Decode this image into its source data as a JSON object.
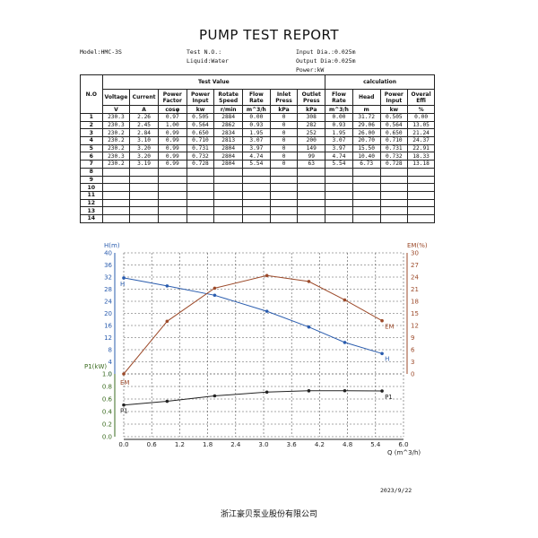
{
  "report": {
    "title": "PUMP TEST REPORT",
    "model": "Model:HMC-3S",
    "test_no": "Test N.O.:",
    "liquid": "Liquid:Water",
    "input_dia": "Input Dia.:0.025m",
    "output_dia": "Output Dia:0.025m",
    "power": "Power:kW"
  },
  "table": {
    "no_header": "N.O",
    "group_test": "Test Value",
    "group_calc": "calculation",
    "columns": [
      "Voltage",
      "Current",
      "Power Factor",
      "Power Input",
      "Rotate Speed",
      "Flow Rate",
      "Inlet Press",
      "Outlet Press",
      "Flow Rate",
      "Head",
      "Power Input",
      "Overal Effi"
    ],
    "units": [
      "V",
      "A",
      "cosφ",
      "kw",
      "r/min",
      "m^3/h",
      "kPa",
      "kPa",
      "m^3/h",
      "m",
      "kw",
      "%"
    ],
    "row_numbers": [
      "1",
      "2",
      "3",
      "4",
      "5",
      "6",
      "7",
      "8",
      "9",
      "10",
      "11",
      "12",
      "13",
      "14"
    ],
    "rows": [
      [
        "230.3",
        "2.26",
        "0.97",
        "0.505",
        "2884",
        "0.00",
        "0",
        "308",
        "0.00",
        "31.72",
        "0.505",
        "0.00"
      ],
      [
        "230.3",
        "2.45",
        "1.00",
        "0.564",
        "2862",
        "0.93",
        "0",
        "282",
        "0.93",
        "29.06",
        "0.564",
        "13.05"
      ],
      [
        "230.2",
        "2.84",
        "0.99",
        "0.650",
        "2834",
        "1.95",
        "0",
        "252",
        "1.95",
        "26.00",
        "0.650",
        "21.24"
      ],
      [
        "230.2",
        "3.10",
        "0.99",
        "0.710",
        "2813",
        "3.07",
        "0",
        "200",
        "3.07",
        "20.70",
        "0.710",
        "24.37"
      ],
      [
        "230.2",
        "3.20",
        "0.99",
        "0.731",
        "2804",
        "3.97",
        "0",
        "149",
        "3.97",
        "15.50",
        "0.731",
        "22.91"
      ],
      [
        "230.3",
        "3.20",
        "0.99",
        "0.732",
        "2804",
        "4.74",
        "0",
        "99",
        "4.74",
        "10.40",
        "0.732",
        "18.33"
      ],
      [
        "230.2",
        "3.19",
        "0.99",
        "0.728",
        "2804",
        "5.54",
        "0",
        "63",
        "5.54",
        "6.73",
        "0.728",
        "13.18"
      ]
    ]
  },
  "chart_data": {
    "type": "line",
    "xlabel": "Q (m^3/h)",
    "x_ticks": [
      "0.0",
      "0.6",
      "1.2",
      "1.8",
      "2.4",
      "3.0",
      "3.6",
      "4.2",
      "4.8",
      "5.4",
      "6.0"
    ],
    "xlim": [
      0,
      6.0
    ],
    "axes": {
      "H": {
        "label": "H(m)",
        "ticks": [
          "0",
          "4",
          "8",
          "12",
          "16",
          "20",
          "24",
          "28",
          "32",
          "36",
          "40"
        ],
        "ylim": [
          0,
          40
        ]
      },
      "EM": {
        "label": "EM(%)",
        "ticks": [
          "0",
          "3",
          "6",
          "9",
          "12",
          "15",
          "18",
          "21",
          "24",
          "27",
          "30"
        ],
        "ylim": [
          0,
          30
        ]
      },
      "P1": {
        "label": "P1(kW)",
        "ticks": [
          "0.0",
          "0.2",
          "0.4",
          "0.6",
          "0.8",
          "1.0"
        ],
        "ylim": [
          0,
          1.0
        ]
      }
    },
    "series": [
      {
        "name": "H",
        "axis": "H",
        "color": "#2a5cae",
        "end_label": "H",
        "x": [
          0.0,
          0.93,
          1.95,
          3.07,
          3.97,
          4.74,
          5.54
        ],
        "y": [
          31.72,
          29.06,
          26.0,
          20.7,
          15.5,
          10.4,
          6.73
        ]
      },
      {
        "name": "EM",
        "axis": "EM",
        "color": "#9c4a2a",
        "end_label": "EM",
        "x": [
          0.0,
          0.93,
          1.95,
          3.07,
          3.97,
          4.74,
          5.54
        ],
        "y": [
          0.0,
          13.05,
          21.24,
          24.37,
          22.91,
          18.33,
          13.18
        ]
      },
      {
        "name": "P1",
        "axis": "P1",
        "color": "#222222",
        "end_label": "P1",
        "x": [
          0.0,
          0.93,
          1.95,
          3.07,
          3.97,
          4.74,
          5.54
        ],
        "y": [
          0.505,
          0.564,
          0.65,
          0.71,
          0.731,
          0.732,
          0.728
        ]
      }
    ],
    "grid": true
  },
  "footer": {
    "date": "2023/9/22",
    "company": "浙江豪贝泵业股份有限公司"
  }
}
